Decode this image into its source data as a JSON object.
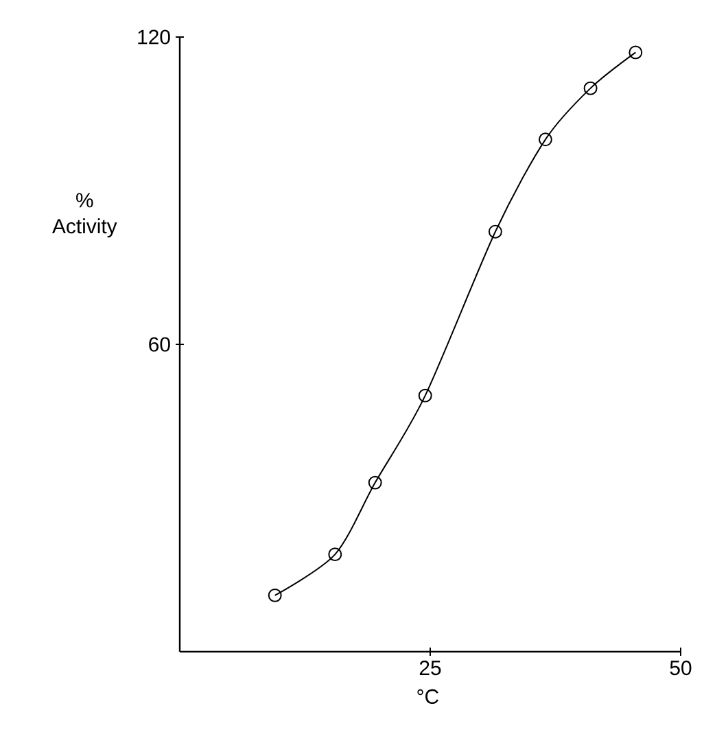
{
  "chart_data": {
    "type": "line",
    "xlabel": "°C",
    "ylabel": "% Activity",
    "x": [
      9.5,
      15.5,
      19.5,
      24.5,
      31.5,
      36.5,
      41,
      45.5
    ],
    "series": [
      {
        "color": "#000000",
        "values": [
          11,
          19,
          33,
          50,
          82,
          100,
          110,
          117
        ]
      }
    ],
    "xlim": [
      0,
      50
    ],
    "ylim": [
      0,
      120
    ],
    "xticks": [
      25,
      50
    ],
    "yticks": [
      60,
      120
    ],
    "marker": "circle",
    "line_style": "solid"
  }
}
